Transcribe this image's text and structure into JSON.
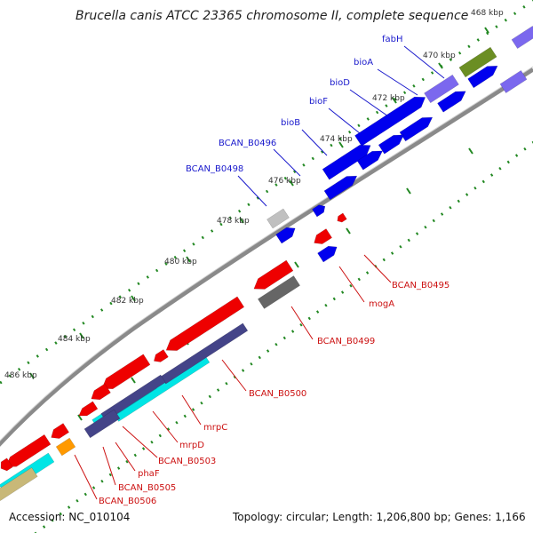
{
  "title": "Brucella canis ATCC 23365 chromosome II, complete sequence",
  "accession": "Accession: NC_010104",
  "topology": "Topology: circular; Length: 1,206,800 bp; Genes: 1,166",
  "ticks": [
    "468 kbp",
    "470 kbp",
    "472 kbp",
    "474 kbp",
    "476 kbp",
    "478 kbp",
    "480 kbp",
    "482 kbp",
    "484 kbp",
    "486 kbp"
  ],
  "gene_labels_top": [
    "fabH",
    "bioA",
    "bioD",
    "bioF",
    "bioB",
    "BCAN_B0496",
    "BCAN_B0498"
  ],
  "gene_labels_bottom": [
    "BCAN_B0495",
    "mogA",
    "BCAN_B0499",
    "BCAN_B0500",
    "mrpC",
    "mrpD",
    "BCAN_B0503",
    "phaF",
    "BCAN_B0505",
    "BCAN_B0506"
  ],
  "colors": {
    "forward": "#0000ee",
    "reverse": "#ee0000",
    "backbone": "#888888",
    "tick": "#228822",
    "cyan": "#00e5e5",
    "slate": "#444488",
    "olive": "#6b8e23",
    "gray": "#666666",
    "lightgray": "#c0c0c0",
    "orange": "#ff9900",
    "khaki": "#c8b878",
    "lavender": "#7b68ee"
  }
}
